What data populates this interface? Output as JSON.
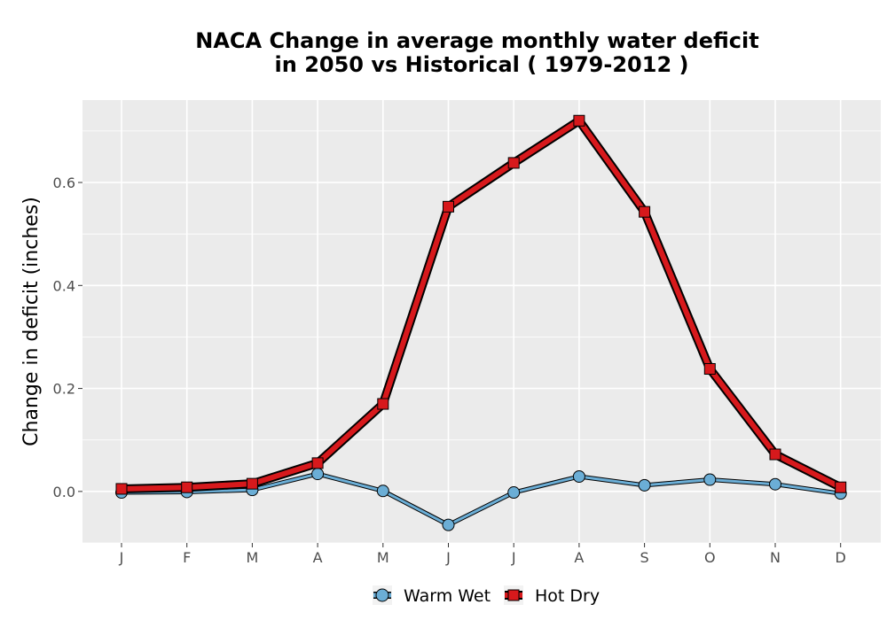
{
  "chart_data": {
    "type": "line",
    "title_lines": [
      "NACA  Change in average monthly water deficit",
      "in 2050 vs Historical ( 1979-2012 )"
    ],
    "xlabel": "",
    "ylabel": "Change in deficit (inches)",
    "categories": [
      "J",
      "F",
      "M",
      "A",
      "M",
      "J",
      "J",
      "A",
      "S",
      "O",
      "N",
      "D"
    ],
    "yticks": [
      0.0,
      0.2,
      0.4,
      0.6
    ],
    "ytick_labels": [
      "0.0",
      "0.2",
      "0.4",
      "0.6"
    ],
    "ylim": [
      -0.1,
      0.76
    ],
    "grid": true,
    "legend_position": "bottom",
    "series": [
      {
        "name": "Warm Wet",
        "marker": "circle",
        "color": "#6baed6",
        "values": [
          -0.002,
          -0.001,
          0.003,
          0.034,
          0.001,
          -0.065,
          -0.002,
          0.029,
          0.012,
          0.023,
          0.014,
          -0.004
        ]
      },
      {
        "name": "Hot Dry",
        "marker": "square",
        "color": "#d7191c",
        "values": [
          0.005,
          0.008,
          0.015,
          0.055,
          0.17,
          0.553,
          0.638,
          0.72,
          0.543,
          0.238,
          0.072,
          0.008
        ]
      }
    ]
  }
}
